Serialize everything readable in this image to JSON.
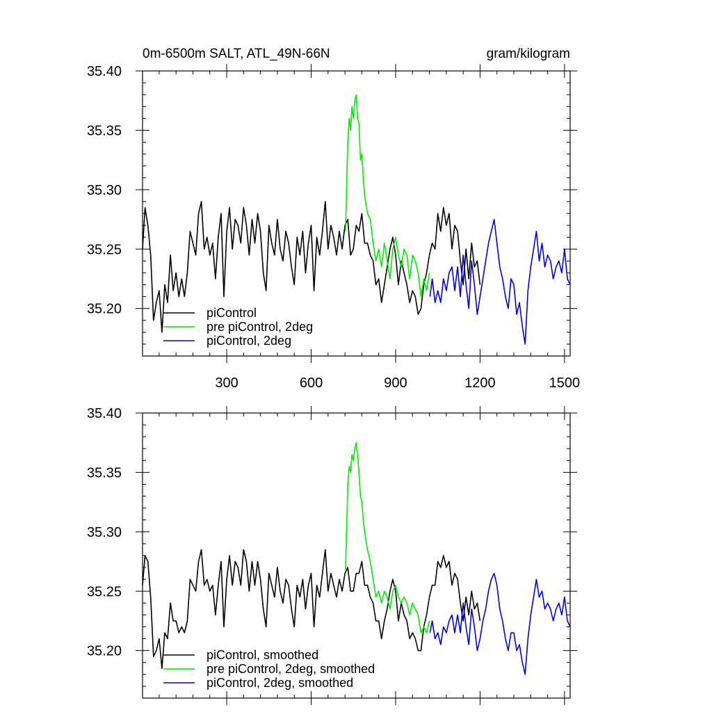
{
  "title_left": "0m-6500m SALT, ATL_49N-66N",
  "title_right": "gram/kilogram",
  "colors": {
    "black": "#000000",
    "green": "#00ee00",
    "blue": "#0000dd"
  },
  "chart_data": [
    {
      "type": "line",
      "title": "0m-6500m SALT, ATL_49N-66N",
      "units": "gram/kilogram",
      "xlim": [
        1,
        1520
      ],
      "ylim": [
        35.16,
        35.4
      ],
      "xticks": [
        300,
        600,
        900,
        1200,
        1500
      ],
      "xtick_labels": [
        "300",
        "600",
        "900",
        "1200",
        "1500"
      ],
      "yticks": [
        35.2,
        35.25,
        35.3,
        35.35,
        35.4
      ],
      "ytick_labels": [
        "35.20",
        "35.25",
        "35.30",
        "35.35",
        "35.40"
      ],
      "legend_position": "bottom-left",
      "series": [
        {
          "name": "piControl",
          "color": "#000000",
          "x": [
            1,
            10,
            20,
            30,
            40,
            50,
            60,
            70,
            80,
            90,
            100,
            110,
            120,
            130,
            140,
            150,
            160,
            170,
            180,
            190,
            200,
            210,
            220,
            230,
            240,
            250,
            260,
            270,
            280,
            290,
            300,
            310,
            320,
            330,
            340,
            350,
            360,
            370,
            380,
            390,
            400,
            410,
            420,
            430,
            440,
            450,
            460,
            470,
            480,
            490,
            500,
            510,
            520,
            530,
            540,
            550,
            560,
            570,
            580,
            590,
            600,
            610,
            620,
            630,
            640,
            650,
            660,
            670,
            680,
            690,
            700,
            710,
            720,
            730,
            740,
            750,
            760,
            770,
            780,
            790,
            800,
            810,
            820,
            830,
            840,
            850,
            860,
            870,
            880,
            890,
            900,
            910,
            920,
            930,
            940,
            950,
            960,
            970,
            980,
            990,
            1000,
            1010,
            1020,
            1030,
            1040,
            1050,
            1060,
            1070,
            1080,
            1090,
            1100,
            1110,
            1120,
            1130,
            1140,
            1150,
            1160,
            1170,
            1180,
            1190,
            1200
          ],
          "y": [
            35.25,
            35.285,
            35.27,
            35.245,
            35.19,
            35.205,
            35.215,
            35.18,
            35.22,
            35.205,
            35.245,
            35.215,
            35.23,
            35.21,
            35.225,
            35.21,
            35.23,
            35.265,
            35.255,
            35.245,
            35.28,
            35.29,
            35.25,
            35.26,
            35.245,
            35.255,
            35.225,
            35.26,
            35.28,
            35.21,
            35.265,
            35.285,
            35.25,
            35.275,
            35.27,
            35.255,
            35.285,
            35.27,
            35.245,
            35.275,
            35.255,
            35.28,
            35.265,
            35.23,
            35.215,
            35.27,
            35.255,
            35.245,
            35.275,
            35.25,
            35.24,
            35.265,
            35.255,
            35.235,
            35.22,
            35.26,
            35.245,
            35.265,
            35.23,
            35.255,
            35.27,
            35.215,
            35.26,
            35.245,
            35.265,
            35.29,
            35.25,
            35.27,
            35.26,
            35.245,
            35.265,
            35.25,
            35.27,
            35.275,
            35.245,
            35.25,
            35.27,
            35.265,
            35.28,
            35.255,
            35.255,
            35.245,
            35.24,
            35.22,
            35.225,
            35.205,
            35.22,
            35.235,
            35.25,
            35.26,
            35.245,
            35.22,
            35.24,
            35.23,
            35.22,
            35.205,
            35.215,
            35.21,
            35.195,
            35.2,
            35.22,
            35.23,
            35.245,
            35.255,
            35.25,
            35.28,
            35.265,
            35.285,
            35.27,
            35.28,
            35.25,
            35.27,
            35.265,
            35.24,
            35.22,
            35.25,
            35.225,
            35.255,
            35.235,
            35.24,
            35.22
          ]
        },
        {
          "name": "pre piControl, 2deg",
          "color": "#00ee00",
          "x": [
            722,
            730,
            735,
            740,
            745,
            750,
            755,
            760,
            765,
            770,
            775,
            780,
            785,
            790,
            800,
            810,
            820,
            830,
            840,
            850,
            860,
            870,
            880,
            890,
            900,
            910,
            920,
            930,
            940,
            950,
            960,
            970,
            980,
            990,
            1000,
            1010,
            1020
          ],
          "y": [
            35.265,
            35.34,
            35.36,
            35.35,
            35.37,
            35.36,
            35.375,
            35.38,
            35.36,
            35.355,
            35.325,
            35.33,
            35.31,
            35.295,
            35.28,
            35.275,
            35.255,
            35.24,
            35.25,
            35.235,
            35.255,
            35.24,
            35.225,
            35.25,
            35.26,
            35.245,
            35.235,
            35.25,
            35.245,
            35.225,
            35.245,
            35.24,
            35.23,
            35.21,
            35.225,
            35.215,
            35.23
          ]
        },
        {
          "name": "piControl, 2deg",
          "color": "#0000dd",
          "x": [
            1022,
            1030,
            1040,
            1050,
            1060,
            1070,
            1080,
            1090,
            1100,
            1110,
            1120,
            1130,
            1140,
            1150,
            1160,
            1170,
            1180,
            1190,
            1200,
            1210,
            1220,
            1230,
            1240,
            1250,
            1260,
            1270,
            1280,
            1290,
            1300,
            1310,
            1320,
            1330,
            1340,
            1350,
            1360,
            1370,
            1380,
            1390,
            1400,
            1410,
            1420,
            1430,
            1440,
            1450,
            1460,
            1470,
            1480,
            1490,
            1500,
            1510,
            1520
          ],
          "y": [
            35.21,
            35.225,
            35.205,
            35.215,
            35.205,
            35.225,
            35.215,
            35.23,
            35.235,
            35.215,
            35.235,
            35.21,
            35.245,
            35.22,
            35.2,
            35.24,
            35.22,
            35.195,
            35.21,
            35.225,
            35.24,
            35.255,
            35.265,
            35.275,
            35.255,
            35.235,
            35.225,
            35.21,
            35.2,
            35.225,
            35.22,
            35.195,
            35.205,
            35.185,
            35.17,
            35.215,
            35.235,
            35.25,
            35.265,
            35.24,
            35.255,
            35.235,
            35.245,
            35.24,
            35.225,
            35.235,
            35.24,
            35.23,
            35.25,
            35.225,
            35.22
          ]
        }
      ],
      "legend": [
        "piControl",
        "pre piControl, 2deg",
        "piControl, 2deg"
      ]
    },
    {
      "type": "line",
      "xlim": [
        1,
        1520
      ],
      "ylim": [
        35.16,
        35.4
      ],
      "xticks": [
        300,
        600,
        900,
        1200,
        1500
      ],
      "yticks": [
        35.2,
        35.25,
        35.3,
        35.35,
        35.4
      ],
      "ytick_labels": [
        "35.20",
        "35.25",
        "35.30",
        "35.35",
        "35.40"
      ],
      "legend_position": "bottom-left",
      "series": [
        {
          "name": "piControl, smoothed",
          "color": "#000000",
          "x": [
            1,
            10,
            20,
            30,
            40,
            50,
            60,
            70,
            80,
            90,
            100,
            110,
            120,
            130,
            140,
            150,
            160,
            170,
            180,
            190,
            200,
            210,
            220,
            230,
            240,
            250,
            260,
            270,
            280,
            290,
            300,
            310,
            320,
            330,
            340,
            350,
            360,
            370,
            380,
            390,
            400,
            410,
            420,
            430,
            440,
            450,
            460,
            470,
            480,
            490,
            500,
            510,
            520,
            530,
            540,
            550,
            560,
            570,
            580,
            590,
            600,
            610,
            620,
            630,
            640,
            650,
            660,
            670,
            680,
            690,
            700,
            710,
            720,
            730,
            740,
            750,
            760,
            770,
            780,
            790,
            800,
            810,
            820,
            830,
            840,
            850,
            860,
            870,
            880,
            890,
            900,
            910,
            920,
            930,
            940,
            950,
            960,
            970,
            980,
            990,
            1000,
            1010,
            1020,
            1030,
            1040,
            1050,
            1060,
            1070,
            1080,
            1090,
            1100,
            1110,
            1120,
            1130,
            1140,
            1150,
            1160,
            1170,
            1180,
            1190,
            1200
          ],
          "y": [
            35.255,
            35.28,
            35.275,
            35.245,
            35.195,
            35.2,
            35.21,
            35.185,
            35.215,
            35.21,
            35.24,
            35.225,
            35.225,
            35.215,
            35.22,
            35.215,
            35.225,
            35.26,
            35.255,
            35.25,
            35.275,
            35.285,
            35.255,
            35.26,
            35.25,
            35.255,
            35.23,
            35.255,
            35.275,
            35.22,
            35.26,
            35.28,
            35.255,
            35.275,
            35.27,
            35.255,
            35.285,
            35.275,
            35.25,
            35.275,
            35.255,
            35.275,
            35.26,
            35.235,
            35.22,
            35.265,
            35.255,
            35.245,
            35.27,
            35.25,
            35.24,
            35.26,
            35.255,
            35.235,
            35.22,
            35.255,
            35.245,
            35.26,
            35.235,
            35.255,
            35.265,
            35.22,
            35.255,
            35.245,
            35.265,
            35.285,
            35.25,
            35.265,
            35.255,
            35.245,
            35.26,
            35.25,
            35.265,
            35.27,
            35.25,
            35.25,
            35.265,
            35.265,
            35.275,
            35.255,
            35.255,
            35.245,
            35.24,
            35.225,
            35.225,
            35.21,
            35.225,
            35.235,
            35.25,
            35.26,
            35.25,
            35.225,
            35.24,
            35.23,
            35.225,
            35.21,
            35.215,
            35.21,
            35.2,
            35.2,
            35.22,
            35.23,
            35.245,
            35.255,
            35.255,
            35.275,
            35.27,
            35.28,
            35.27,
            35.275,
            35.255,
            35.265,
            35.26,
            35.24,
            35.225,
            35.245,
            35.23,
            35.25,
            35.235,
            35.24,
            35.225
          ]
        },
        {
          "name": "pre piControl, 2deg, smoothed",
          "color": "#00ee00",
          "x": [
            722,
            730,
            735,
            740,
            745,
            750,
            755,
            760,
            765,
            770,
            775,
            780,
            785,
            790,
            800,
            810,
            820,
            830,
            840,
            850,
            860,
            870,
            880,
            890,
            900,
            910,
            920,
            930,
            940,
            950,
            960,
            970,
            980,
            990,
            1000,
            1010,
            1020
          ],
          "y": [
            35.268,
            35.34,
            35.355,
            35.35,
            35.365,
            35.36,
            35.37,
            35.375,
            35.365,
            35.35,
            35.33,
            35.325,
            35.31,
            35.3,
            35.285,
            35.275,
            35.26,
            35.245,
            35.25,
            35.24,
            35.25,
            35.245,
            35.235,
            35.25,
            35.255,
            35.245,
            35.24,
            35.245,
            35.24,
            35.23,
            35.24,
            35.235,
            35.23,
            35.215,
            35.22,
            35.215,
            35.225
          ]
        },
        {
          "name": "piControl, 2deg, smoothed",
          "color": "#0000dd",
          "x": [
            1022,
            1030,
            1040,
            1050,
            1060,
            1070,
            1080,
            1090,
            1100,
            1110,
            1120,
            1130,
            1140,
            1150,
            1160,
            1170,
            1180,
            1190,
            1200,
            1210,
            1220,
            1230,
            1240,
            1250,
            1260,
            1270,
            1280,
            1290,
            1300,
            1310,
            1320,
            1330,
            1340,
            1350,
            1360,
            1370,
            1380,
            1390,
            1400,
            1410,
            1420,
            1430,
            1440,
            1450,
            1460,
            1470,
            1480,
            1490,
            1500,
            1510,
            1520
          ],
          "y": [
            35.215,
            35.225,
            35.21,
            35.215,
            35.205,
            35.22,
            35.215,
            35.225,
            35.23,
            35.215,
            35.23,
            35.215,
            35.24,
            35.22,
            35.205,
            35.235,
            35.22,
            35.2,
            35.21,
            35.225,
            35.235,
            35.25,
            35.26,
            35.265,
            35.255,
            35.235,
            35.225,
            35.21,
            35.2,
            35.215,
            35.215,
            35.2,
            35.205,
            35.19,
            35.18,
            35.21,
            35.23,
            35.245,
            35.26,
            35.245,
            35.25,
            35.235,
            35.24,
            35.235,
            35.225,
            35.235,
            35.24,
            35.23,
            35.245,
            35.225,
            35.22
          ]
        }
      ],
      "legend": [
        "piControl, smoothed",
        "pre piControl, 2deg, smoothed",
        "piControl, 2deg, smoothed"
      ]
    }
  ]
}
